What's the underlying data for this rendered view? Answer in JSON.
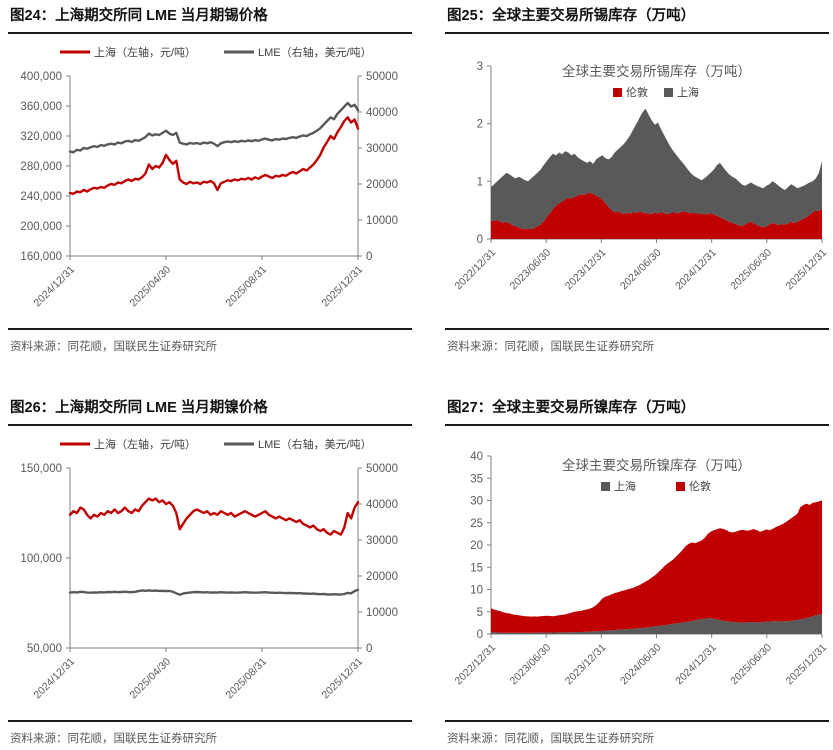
{
  "colors": {
    "red": "#C00000",
    "gray": "#595959",
    "axis": "#808080",
    "tick_text": "#595959",
    "legend_text": "#404040",
    "title_text": "#111111"
  },
  "panels": [
    {
      "title": "图24：上海期交所同 LME 当月期锡价格",
      "source": "资料来源：同花顺，国联民生证券研究所"
    },
    {
      "title": "图25：全球主要交易所锡库存（万吨）",
      "source": "资料来源：同花顺，国联民生证券研究所"
    },
    {
      "title": "图26：上海期交所同 LME 当月期镍价格",
      "source": "资料来源：同花顺，国联民生证券研究所"
    },
    {
      "title": "图27：全球主要交易所镍库存（万吨）",
      "source": "资料来源：同花顺，国联民生证券研究所"
    }
  ],
  "chart_data": [
    {
      "type": "line",
      "title": "上海期交所同 LME 当月期锡价格",
      "x_ticks": [
        "2024/12/31",
        "2025/04/30",
        "2025/08/31",
        "2025/12/31"
      ],
      "left_axis": {
        "min": 160000,
        "max": 400000,
        "ticks": [
          "400,000",
          "360,000",
          "320,000",
          "280,000",
          "240,000",
          "200,000",
          "160,000"
        ]
      },
      "right_axis": {
        "min": 0,
        "max": 50000,
        "ticks": [
          "50000",
          "40000",
          "30000",
          "20000",
          "10000",
          "0"
        ]
      },
      "legend": [
        {
          "label": "上海（左轴，元/吨）",
          "color": "#C00000"
        },
        {
          "label": "LME（右轴，美元/吨）",
          "color": "#595959"
        }
      ],
      "series": [
        {
          "name": "上海",
          "axis": "left",
          "color": "#C00000",
          "values": [
            244000,
            243000,
            246000,
            245000,
            248000,
            246000,
            249000,
            251000,
            250000,
            252000,
            251000,
            254000,
            256000,
            255000,
            258000,
            257000,
            260000,
            262000,
            260000,
            263000,
            262000,
            265000,
            270000,
            282000,
            276000,
            280000,
            278000,
            284000,
            295000,
            288000,
            283000,
            287000,
            262000,
            258000,
            256000,
            259000,
            257000,
            258000,
            256000,
            259000,
            258000,
            260000,
            257000,
            248000,
            257000,
            259000,
            261000,
            260000,
            262000,
            261000,
            263000,
            262000,
            264000,
            262000,
            265000,
            263000,
            266000,
            268000,
            266000,
            264000,
            267000,
            266000,
            268000,
            267000,
            270000,
            272000,
            270000,
            273000,
            276000,
            274000,
            278000,
            282000,
            288000,
            295000,
            305000,
            312000,
            320000,
            316000,
            325000,
            332000,
            340000,
            345000,
            338000,
            342000,
            330000
          ]
        },
        {
          "name": "LME",
          "axis": "right",
          "color": "#595959",
          "values": [
            29000,
            28800,
            29500,
            29300,
            30000,
            29800,
            30200,
            30500,
            30300,
            30800,
            30600,
            31000,
            31200,
            31000,
            31500,
            31300,
            31800,
            32000,
            31700,
            32200,
            32000,
            32500,
            33000,
            34000,
            33500,
            33800,
            33600,
            34200,
            34800,
            34000,
            33600,
            34200,
            31500,
            31200,
            31000,
            31400,
            31200,
            31400,
            31100,
            31500,
            31300,
            31600,
            31200,
            30500,
            31300,
            31600,
            31800,
            31600,
            31900,
            31700,
            32000,
            31800,
            32100,
            31900,
            32200,
            32000,
            32400,
            32600,
            32300,
            32100,
            32500,
            32300,
            32600,
            32500,
            32800,
            33000,
            32800,
            33200,
            33500,
            33300,
            33800,
            34200,
            34800,
            35500,
            36500,
            37500,
            38500,
            38000,
            39500,
            40500,
            41500,
            42500,
            41500,
            42000,
            40500
          ]
        }
      ]
    },
    {
      "type": "area",
      "title": "全球主要交易所锡库存（万吨）",
      "x_ticks": [
        "2022/12/31",
        "2023/06/30",
        "2023/12/31",
        "2024/06/30",
        "2024/12/31",
        "2025/06/30",
        "2025/12/31"
      ],
      "left_axis": {
        "min": 0,
        "max": 3,
        "ticks": [
          "3",
          "2",
          "1",
          "0"
        ]
      },
      "legend": [
        {
          "label": "伦敦",
          "color": "#C00000"
        },
        {
          "label": "上海",
          "color": "#595959"
        }
      ],
      "series": [
        {
          "name": "伦敦",
          "color": "#C00000",
          "values": [
            0.32,
            0.31,
            0.33,
            0.3,
            0.28,
            0.3,
            0.27,
            0.24,
            0.22,
            0.2,
            0.18,
            0.17,
            0.18,
            0.17,
            0.19,
            0.22,
            0.25,
            0.3,
            0.38,
            0.45,
            0.52,
            0.58,
            0.62,
            0.65,
            0.68,
            0.72,
            0.7,
            0.73,
            0.75,
            0.78,
            0.76,
            0.79,
            0.8,
            0.78,
            0.75,
            0.72,
            0.68,
            0.62,
            0.55,
            0.5,
            0.46,
            0.48,
            0.45,
            0.43,
            0.46,
            0.44,
            0.47,
            0.45,
            0.48,
            0.46,
            0.44,
            0.45,
            0.43,
            0.46,
            0.44,
            0.47,
            0.45,
            0.43,
            0.45,
            0.47,
            0.44,
            0.46,
            0.48,
            0.47,
            0.45,
            0.46,
            0.44,
            0.45,
            0.43,
            0.44,
            0.42,
            0.45,
            0.43,
            0.4,
            0.38,
            0.35,
            0.33,
            0.3,
            0.28,
            0.26,
            0.24,
            0.22,
            0.25,
            0.28,
            0.3,
            0.27,
            0.24,
            0.22,
            0.2,
            0.22,
            0.25,
            0.28,
            0.26,
            0.24,
            0.26,
            0.25,
            0.27,
            0.3,
            0.28,
            0.3,
            0.32,
            0.35,
            0.38,
            0.42,
            0.46,
            0.5,
            0.48,
            0.52
          ]
        },
        {
          "name": "上海",
          "color": "#595959",
          "values": [
            0.58,
            0.64,
            0.67,
            0.75,
            0.82,
            0.85,
            0.85,
            0.84,
            0.83,
            0.88,
            0.87,
            0.85,
            0.82,
            0.88,
            0.91,
            0.93,
            0.95,
            0.98,
            0.97,
            0.97,
            0.96,
            0.87,
            0.88,
            0.82,
            0.84,
            0.78,
            0.75,
            0.75,
            0.67,
            0.6,
            0.59,
            0.53,
            0.55,
            0.52,
            0.63,
            0.7,
            0.77,
            0.78,
            0.83,
            0.92,
            1.04,
            1.07,
            1.15,
            1.22,
            1.26,
            1.36,
            1.43,
            1.55,
            1.62,
            1.74,
            1.82,
            1.7,
            1.62,
            1.52,
            1.58,
            1.43,
            1.35,
            1.27,
            1.15,
            1.05,
            1.01,
            0.92,
            0.84,
            0.78,
            0.73,
            0.66,
            0.64,
            0.6,
            0.59,
            0.61,
            0.68,
            0.7,
            0.77,
            0.88,
            0.94,
            0.9,
            0.85,
            0.82,
            0.8,
            0.79,
            0.76,
            0.73,
            0.67,
            0.67,
            0.68,
            0.68,
            0.68,
            0.68,
            0.68,
            0.7,
            0.7,
            0.72,
            0.71,
            0.68,
            0.62,
            0.6,
            0.63,
            0.65,
            0.64,
            0.58,
            0.58,
            0.57,
            0.57,
            0.56,
            0.54,
            0.55,
            0.67,
            0.83
          ]
        }
      ]
    },
    {
      "type": "line",
      "title": "上海期交所同 LME 当月期镍价格",
      "x_ticks": [
        "2024/12/31",
        "2025/04/30",
        "2025/08/31",
        "2025/12/31"
      ],
      "left_axis": {
        "min": 50000,
        "max": 150000,
        "ticks": [
          "150,000",
          "100,000",
          "50,000"
        ]
      },
      "right_axis": {
        "min": 0,
        "max": 50000,
        "ticks": [
          "50000",
          "40000",
          "30000",
          "20000",
          "10000",
          "0"
        ]
      },
      "legend": [
        {
          "label": "上海（左轴，元/吨）",
          "color": "#C00000"
        },
        {
          "label": "LME（右轴，美元/吨）",
          "color": "#595959"
        }
      ],
      "series": [
        {
          "name": "上海",
          "axis": "left",
          "color": "#C00000",
          "values": [
            124000,
            126000,
            125000,
            128000,
            127000,
            124000,
            122000,
            124000,
            123000,
            125000,
            124000,
            126000,
            125000,
            127000,
            125000,
            126000,
            128000,
            126000,
            125000,
            127000,
            126000,
            129000,
            131000,
            133000,
            132000,
            133000,
            131000,
            132000,
            130000,
            131000,
            129000,
            125000,
            116000,
            119000,
            122000,
            124000,
            126000,
            127000,
            126000,
            125000,
            126000,
            124000,
            125000,
            124000,
            126000,
            125000,
            124000,
            125000,
            123000,
            124000,
            125000,
            126000,
            125000,
            124000,
            123000,
            124000,
            125000,
            126000,
            124000,
            123000,
            122000,
            123000,
            122000,
            121000,
            122000,
            121000,
            120000,
            121000,
            119000,
            118000,
            117000,
            118000,
            116000,
            115000,
            116000,
            114000,
            113000,
            115000,
            114000,
            113000,
            117000,
            125000,
            122000,
            128000,
            131000
          ]
        },
        {
          "name": "LME",
          "axis": "right",
          "color": "#595959",
          "values": [
            15400,
            15500,
            15450,
            15600,
            15550,
            15400,
            15350,
            15450,
            15400,
            15500,
            15450,
            15550,
            15500,
            15600,
            15500,
            15550,
            15650,
            15550,
            15500,
            15600,
            15800,
            16000,
            15900,
            16000,
            15900,
            15950,
            15850,
            15900,
            15800,
            15850,
            15600,
            15200,
            14800,
            15100,
            15300,
            15400,
            15500,
            15550,
            15500,
            15450,
            15500,
            15400,
            15450,
            15400,
            15500,
            15450,
            15400,
            15450,
            15350,
            15400,
            15450,
            15500,
            15450,
            15400,
            15350,
            15400,
            15450,
            15500,
            15400,
            15350,
            15300,
            15350,
            15300,
            15250,
            15300,
            15250,
            15200,
            15250,
            15150,
            15100,
            15050,
            15100,
            15000,
            14950,
            15000,
            14900,
            14850,
            14950,
            14900,
            14850,
            15000,
            15300,
            15200,
            15800,
            16200
          ]
        }
      ]
    },
    {
      "type": "area",
      "title": "全球主要交易所镍库存（万吨）",
      "x_ticks": [
        "2022/12/31",
        "2023/06/30",
        "2023/12/31",
        "2024/06/30",
        "2024/12/31",
        "2025/06/30",
        "2025/12/31"
      ],
      "left_axis": {
        "min": 0,
        "max": 40,
        "ticks": [
          "40",
          "35",
          "30",
          "25",
          "20",
          "15",
          "10",
          "5",
          "0"
        ]
      },
      "legend": [
        {
          "label": "上海",
          "color": "#595959"
        },
        {
          "label": "伦敦",
          "color": "#C00000"
        }
      ],
      "series": [
        {
          "name": "上海",
          "color": "#595959",
          "values": [
            0.4,
            0.38,
            0.35,
            0.32,
            0.3,
            0.28,
            0.27,
            0.26,
            0.28,
            0.27,
            0.29,
            0.28,
            0.3,
            0.29,
            0.31,
            0.3,
            0.32,
            0.31,
            0.33,
            0.32,
            0.34,
            0.33,
            0.35,
            0.36,
            0.35,
            0.37,
            0.38,
            0.4,
            0.42,
            0.45,
            0.48,
            0.52,
            0.55,
            0.58,
            0.62,
            0.65,
            0.7,
            0.75,
            0.8,
            0.85,
            0.9,
            0.95,
            1.0,
            1.05,
            1.1,
            1.15,
            1.2,
            1.25,
            1.3,
            1.38,
            1.45,
            1.52,
            1.6,
            1.7,
            1.8,
            1.9,
            2.0,
            2.1,
            2.2,
            2.3,
            2.4,
            2.5,
            2.6,
            2.7,
            2.8,
            2.95,
            3.1,
            3.25,
            3.35,
            3.45,
            3.5,
            3.55,
            3.45,
            3.3,
            3.15,
            3.0,
            2.9,
            2.8,
            2.7,
            2.65,
            2.6,
            2.55,
            2.6,
            2.65,
            2.7,
            2.65,
            2.6,
            2.65,
            2.7,
            2.75,
            2.8,
            2.85,
            2.9,
            2.85,
            2.8,
            2.85,
            2.9,
            3.0,
            3.1,
            3.2,
            3.3,
            3.45,
            3.6,
            3.8,
            4.0,
            4.2,
            4.4,
            4.5
          ]
        },
        {
          "name": "伦敦",
          "color": "#C00000",
          "values": [
            5.4,
            5.12,
            4.95,
            4.78,
            4.6,
            4.42,
            4.33,
            4.14,
            4.02,
            3.93,
            3.81,
            3.72,
            3.65,
            3.61,
            3.64,
            3.6,
            3.68,
            3.74,
            3.77,
            3.73,
            3.66,
            3.77,
            3.85,
            3.94,
            4.05,
            4.23,
            4.42,
            4.6,
            4.68,
            4.75,
            4.92,
            4.98,
            5.15,
            5.42,
            5.88,
            6.55,
            7.3,
            7.65,
            7.8,
            8.05,
            8.3,
            8.45,
            8.6,
            8.75,
            8.9,
            9.05,
            9.2,
            9.45,
            9.7,
            10.02,
            10.35,
            10.68,
            11.1,
            11.5,
            12.0,
            12.6,
            13.2,
            13.7,
            14.1,
            14.5,
            15.1,
            15.7,
            16.4,
            17.1,
            17.5,
            17.65,
            17.3,
            17.45,
            17.65,
            18.05,
            18.9,
            19.45,
            19.85,
            20.2,
            20.65,
            20.6,
            20.5,
            20.2,
            20.1,
            20.35,
            20.6,
            20.85,
            20.7,
            20.55,
            20.7,
            20.95,
            20.7,
            20.35,
            20.5,
            20.75,
            20.5,
            20.75,
            21.1,
            21.45,
            21.8,
            22.15,
            22.6,
            23.0,
            23.4,
            23.8,
            25.2,
            25.55,
            25.7,
            25.2,
            25.5,
            25.4,
            25.4,
            25.5
          ]
        }
      ]
    }
  ]
}
